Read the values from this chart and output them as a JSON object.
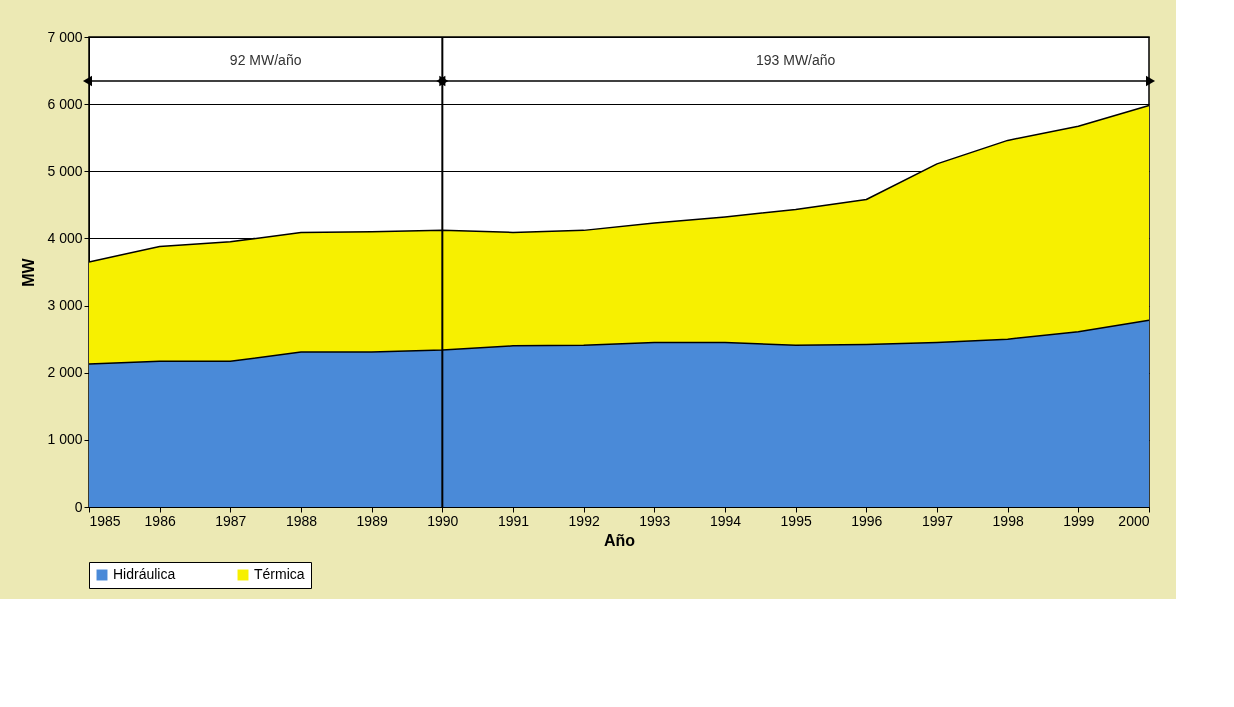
{
  "chart_data": {
    "type": "area",
    "stacked": true,
    "xlabel": "Año",
    "ylabel": "MW",
    "x": [
      1985,
      1986,
      1987,
      1988,
      1989,
      1990,
      1991,
      1992,
      1993,
      1994,
      1995,
      1996,
      1997,
      1998,
      1999,
      2000
    ],
    "series": [
      {
        "name": "Hidráulica",
        "color": "#4a8ad8",
        "values": [
          2130,
          2170,
          2170,
          2310,
          2310,
          2340,
          2400,
          2410,
          2450,
          2450,
          2410,
          2420,
          2450,
          2500,
          2610,
          2780
        ]
      },
      {
        "name": "Térmica",
        "color": "#f7f000",
        "values": [
          1520,
          1710,
          1780,
          1780,
          1790,
          1780,
          1690,
          1710,
          1780,
          1870,
          2020,
          2160,
          2660,
          2960,
          3060,
          3200
        ]
      }
    ],
    "xlim": [
      1985,
      2000
    ],
    "xticks": [
      1985,
      1986,
      1987,
      1988,
      1989,
      1990,
      1991,
      1992,
      1993,
      1994,
      1995,
      1996,
      1997,
      1998,
      1999,
      2000
    ],
    "ylim": [
      0,
      7000
    ],
    "yticks": [
      0,
      {
        "value": 1000,
        "label": "1 000"
      },
      {
        "value": 2000,
        "label": "2 000"
      },
      {
        "value": 3000,
        "label": "3 000"
      },
      {
        "value": 4000,
        "label": "4 000"
      },
      {
        "value": 5000,
        "label": "5 000"
      },
      {
        "value": 6000,
        "label": "6 000"
      },
      {
        "value": 7000,
        "label": "7 000"
      }
    ],
    "ref_lines": [
      {
        "axis": "x",
        "value": 1990,
        "color": "#000000"
      }
    ],
    "annotations": [
      "92 MW/año",
      "193 MW/año"
    ],
    "grid": "y",
    "legend": "bottom"
  }
}
